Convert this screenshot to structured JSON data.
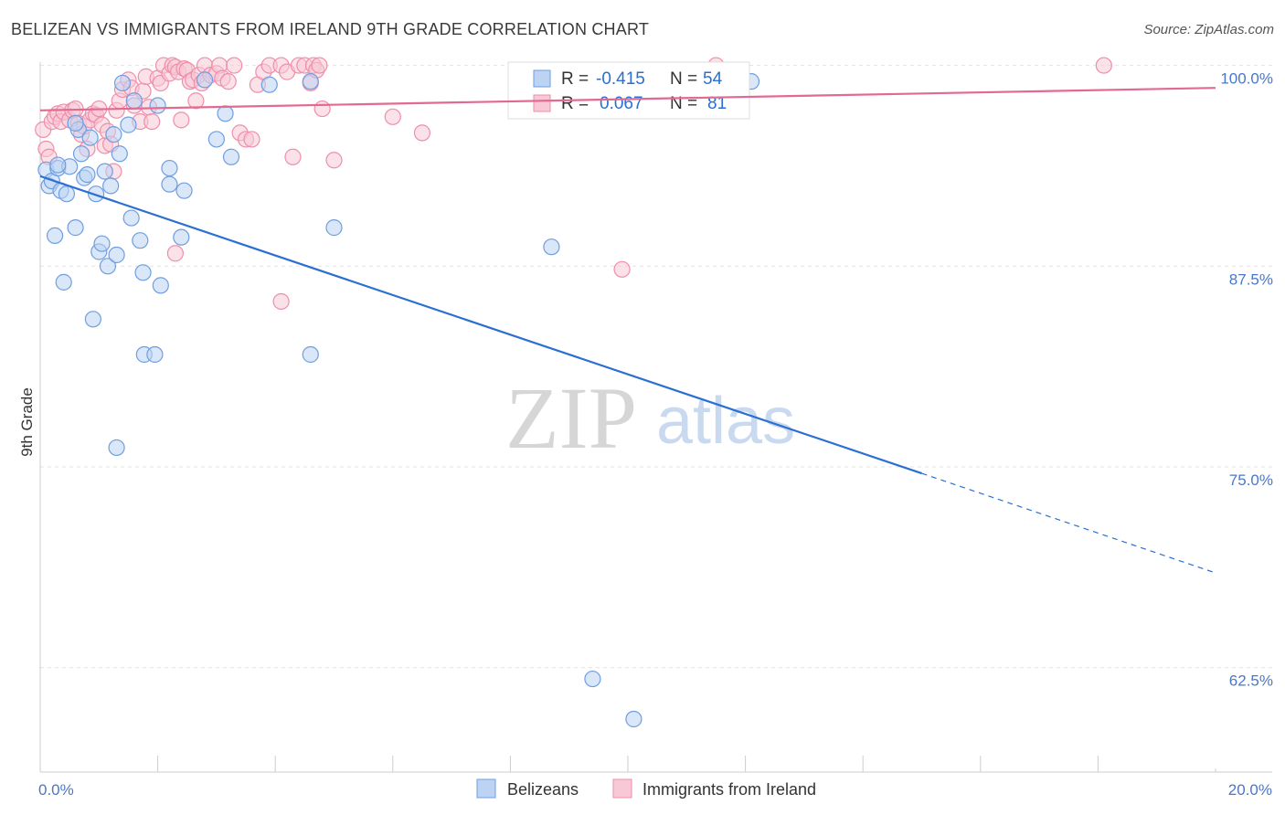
{
  "title": "BELIZEAN VS IMMIGRANTS FROM IRELAND 9TH GRADE CORRELATION CHART",
  "source": "Source: ZipAtlas.com",
  "watermark": {
    "zip": "ZIP",
    "atlas": "atlas"
  },
  "colors": {
    "blue": "#6f9ee0",
    "blue_fill": "#bcd3f3",
    "blue_line": "#2a6fd1",
    "pink": "#ef8eab",
    "pink_fill": "#f8c8d6",
    "pink_line": "#e2698f",
    "tick": "#4a77c9",
    "grid": "#e3e3e3"
  },
  "stats": {
    "r_label": "R =",
    "n_label": "N =",
    "rows": [
      {
        "series": "Belizeans",
        "r": "-0.415",
        "n": "54"
      },
      {
        "series": "Immigrants from Ireland",
        "r": "0.067",
        "n": "81"
      }
    ]
  },
  "chart_data": {
    "type": "scatter",
    "title": "BELIZEAN VS IMMIGRANTS FROM IRELAND 9TH GRADE CORRELATION CHART",
    "xlabel": "",
    "ylabel": "9th Grade",
    "xlim": [
      0,
      20
    ],
    "ylim": [
      56,
      101
    ],
    "x_tick_labels": [
      {
        "value": 0,
        "label": "0.0%"
      },
      {
        "value": 20,
        "label": "20.0%"
      }
    ],
    "y_ticks": [
      {
        "value": 100,
        "label": "100.0%"
      },
      {
        "value": 87.5,
        "label": "87.5%"
      },
      {
        "value": 75,
        "label": "75.0%"
      },
      {
        "value": 62.5,
        "label": "62.5%"
      }
    ],
    "legend": [
      "Belizeans",
      "Immigrants from Ireland"
    ],
    "legend_position": "bottom",
    "series": [
      {
        "name": "Belizeans",
        "trend": {
          "x": [
            0,
            15
          ],
          "y": [
            93.1,
            74.6
          ],
          "dashed_to": [
            20,
            68.4
          ]
        },
        "points": [
          [
            0.1,
            93.5
          ],
          [
            0.15,
            92.5
          ],
          [
            0.2,
            92.8
          ],
          [
            0.25,
            89.4
          ],
          [
            0.3,
            93.6
          ],
          [
            0.35,
            92.2
          ],
          [
            0.4,
            86.5
          ],
          [
            0.45,
            92.0
          ],
          [
            0.5,
            93.7
          ],
          [
            0.6,
            89.9
          ],
          [
            0.65,
            96.0
          ],
          [
            0.7,
            94.5
          ],
          [
            0.75,
            93.0
          ],
          [
            0.8,
            93.2
          ],
          [
            0.85,
            95.5
          ],
          [
            0.9,
            84.2
          ],
          [
            0.95,
            92.0
          ],
          [
            1.0,
            88.4
          ],
          [
            1.05,
            88.9
          ],
          [
            1.1,
            93.4
          ],
          [
            1.15,
            87.5
          ],
          [
            1.2,
            92.5
          ],
          [
            1.25,
            95.7
          ],
          [
            1.3,
            88.2
          ],
          [
            1.35,
            94.5
          ],
          [
            1.4,
            98.9
          ],
          [
            1.5,
            96.3
          ],
          [
            1.55,
            90.5
          ],
          [
            1.6,
            97.8
          ],
          [
            1.7,
            89.1
          ],
          [
            1.75,
            87.1
          ],
          [
            1.77,
            82.0
          ],
          [
            1.95,
            82.0
          ],
          [
            2.0,
            97.5
          ],
          [
            2.05,
            86.3
          ],
          [
            2.2,
            93.6
          ],
          [
            2.2,
            92.6
          ],
          [
            2.4,
            89.3
          ],
          [
            2.45,
            92.2
          ],
          [
            2.8,
            99.1
          ],
          [
            3.0,
            95.4
          ],
          [
            3.15,
            97.0
          ],
          [
            3.25,
            94.3
          ],
          [
            4.6,
            82.0
          ],
          [
            4.6,
            99.0
          ],
          [
            5.0,
            89.9
          ],
          [
            8.7,
            88.7
          ],
          [
            9.4,
            61.8
          ],
          [
            10.1,
            59.3
          ],
          [
            12.1,
            99.0
          ],
          [
            0.3,
            93.8
          ],
          [
            0.6,
            96.4
          ],
          [
            1.3,
            76.2
          ],
          [
            3.9,
            98.8
          ]
        ]
      },
      {
        "name": "Immigrants from Ireland",
        "trend": {
          "x": [
            0,
            20
          ],
          "y": [
            97.2,
            98.6
          ]
        },
        "points": [
          [
            0.05,
            96.0
          ],
          [
            0.1,
            94.8
          ],
          [
            0.15,
            94.3
          ],
          [
            0.2,
            96.5
          ],
          [
            0.25,
            96.8
          ],
          [
            0.3,
            97.0
          ],
          [
            0.35,
            96.5
          ],
          [
            0.4,
            97.1
          ],
          [
            0.5,
            96.6
          ],
          [
            0.55,
            97.2
          ],
          [
            0.6,
            97.3
          ],
          [
            0.65,
            96.4
          ],
          [
            0.7,
            95.7
          ],
          [
            0.75,
            96.2
          ],
          [
            0.8,
            94.8
          ],
          [
            0.85,
            96.6
          ],
          [
            0.9,
            97.0
          ],
          [
            0.95,
            96.9
          ],
          [
            1.0,
            97.3
          ],
          [
            1.05,
            96.3
          ],
          [
            1.1,
            95.0
          ],
          [
            1.15,
            95.9
          ],
          [
            1.2,
            95.1
          ],
          [
            1.25,
            93.4
          ],
          [
            1.3,
            97.2
          ],
          [
            1.35,
            97.8
          ],
          [
            1.4,
            98.5
          ],
          [
            1.5,
            99.1
          ],
          [
            1.55,
            98.6
          ],
          [
            1.6,
            97.5
          ],
          [
            1.7,
            96.5
          ],
          [
            1.75,
            98.4
          ],
          [
            1.8,
            99.3
          ],
          [
            1.85,
            97.4
          ],
          [
            1.9,
            96.5
          ],
          [
            2.0,
            99.2
          ],
          [
            2.05,
            98.9
          ],
          [
            2.1,
            100.0
          ],
          [
            2.2,
            99.5
          ],
          [
            2.25,
            100.0
          ],
          [
            2.3,
            99.9
          ],
          [
            2.35,
            99.6
          ],
          [
            2.4,
            96.6
          ],
          [
            2.45,
            99.8
          ],
          [
            2.5,
            99.7
          ],
          [
            2.55,
            99.0
          ],
          [
            2.6,
            99.1
          ],
          [
            2.65,
            97.8
          ],
          [
            2.7,
            99.4
          ],
          [
            2.75,
            98.9
          ],
          [
            2.8,
            100.0
          ],
          [
            2.9,
            99.4
          ],
          [
            3.0,
            99.5
          ],
          [
            3.05,
            100.0
          ],
          [
            3.1,
            99.2
          ],
          [
            3.2,
            99.0
          ],
          [
            3.3,
            100.0
          ],
          [
            3.4,
            95.8
          ],
          [
            3.5,
            95.4
          ],
          [
            3.6,
            95.4
          ],
          [
            3.7,
            98.8
          ],
          [
            3.8,
            99.6
          ],
          [
            3.9,
            100.0
          ],
          [
            4.1,
            100.0
          ],
          [
            4.2,
            99.6
          ],
          [
            4.3,
            94.3
          ],
          [
            4.4,
            100.0
          ],
          [
            4.5,
            100.0
          ],
          [
            4.6,
            98.9
          ],
          [
            4.65,
            100.0
          ],
          [
            4.7,
            99.7
          ],
          [
            4.75,
            100.0
          ],
          [
            4.8,
            97.3
          ],
          [
            5.0,
            94.1
          ],
          [
            6.0,
            96.8
          ],
          [
            6.5,
            95.8
          ],
          [
            9.9,
            87.3
          ],
          [
            11.5,
            100.0
          ],
          [
            18.1,
            100.0
          ],
          [
            2.3,
            88.3
          ],
          [
            4.1,
            85.3
          ]
        ]
      }
    ]
  }
}
